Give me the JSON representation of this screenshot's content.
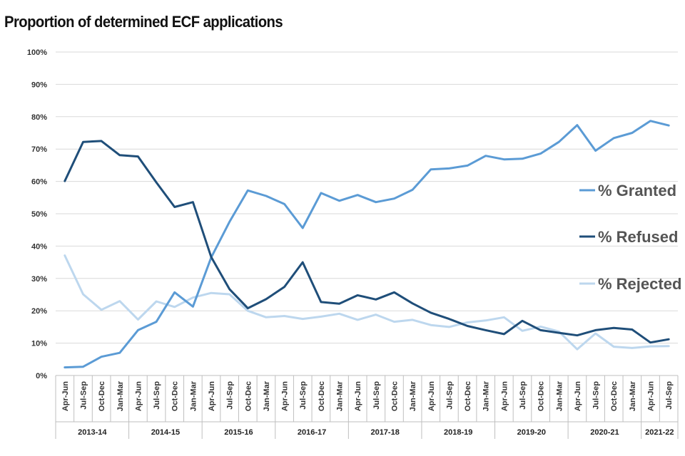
{
  "chart_data": {
    "type": "line",
    "title": "Proportion of determined ECF applications",
    "xlabel": "",
    "ylabel": "",
    "ylim": [
      0,
      100
    ],
    "y_ticks": [
      "0%",
      "10%",
      "20%",
      "30%",
      "40%",
      "50%",
      "60%",
      "70%",
      "80%",
      "90%",
      "100%"
    ],
    "y_tick_values": [
      0,
      10,
      20,
      30,
      40,
      50,
      60,
      70,
      80,
      90,
      100
    ],
    "categories": [
      "Apr-Jun",
      "Jul-Sep",
      "Oct-Dec",
      "Jan-Mar",
      "Apr-Jun",
      "Jul-Sep",
      "Oct-Dec",
      "Jan-Mar",
      "Apr-Jun",
      "Jul-Sep",
      "Oct-Dec",
      "Jan-Mar",
      "Apr-Jun",
      "Jul-Sep",
      "Oct-Dec",
      "Jan-Mar",
      "Apr-Jun",
      "Jul-Sep",
      "Oct-Dec",
      "Jan-Mar",
      "Apr-Jun",
      "Jul-Sep",
      "Oct-Dec",
      "Jan-Mar",
      "Apr-Jun",
      "Jul-Sep",
      "Oct-Dec",
      "Jan-Mar",
      "Apr-Jun",
      "Jul-Sep",
      "Oct-Dec",
      "Jan-Mar",
      "Apr-Jun",
      "Jul-Sep"
    ],
    "year_groups": [
      {
        "label": "2013-14",
        "count": 4
      },
      {
        "label": "2014-15",
        "count": 4
      },
      {
        "label": "2015-16",
        "count": 4
      },
      {
        "label": "2016-17",
        "count": 4
      },
      {
        "label": "2017-18",
        "count": 4
      },
      {
        "label": "2018-19",
        "count": 4
      },
      {
        "label": "2019-20",
        "count": 4
      },
      {
        "label": "2020-21",
        "count": 4
      },
      {
        "label": "2021-22",
        "count": 2
      }
    ],
    "series": [
      {
        "name": "% Granted",
        "color": "#5b9bd5",
        "values": [
          2.5,
          2.7,
          5.8,
          7,
          14,
          16.6,
          25.7,
          21.3,
          36.5,
          47.5,
          57.2,
          55.5,
          53,
          45.6,
          56.4,
          54,
          55.8,
          53.6,
          54.7,
          57.4,
          63.7,
          64,
          64.9,
          67.9,
          66.8,
          67,
          68.6,
          72.2,
          77.4,
          69.5,
          73.4,
          75,
          78.7,
          77.3
        ]
      },
      {
        "name": "% Refused",
        "color": "#1f4e79",
        "values": [
          60.1,
          72.2,
          72.5,
          68.1,
          67.7,
          59.7,
          52.1,
          53.6,
          36.6,
          26.7,
          20.8,
          23.6,
          27.4,
          35,
          22.7,
          22.2,
          24.8,
          23.5,
          25.7,
          22.3,
          19.4,
          17.5,
          15.3,
          14,
          12.8,
          16.9,
          14,
          13.2,
          12.4,
          14,
          14.7,
          14.2,
          10.2,
          11.2
        ]
      },
      {
        "name": "% Rejected",
        "color": "#bdd7ee",
        "values": [
          37.1,
          25.1,
          20.3,
          23,
          17.3,
          22.9,
          21.2,
          24.1,
          25.5,
          25.1,
          20,
          18,
          18.4,
          17.5,
          18.2,
          19.1,
          17.2,
          18.8,
          16.6,
          17.2,
          15.6,
          15,
          16.4,
          17,
          18,
          13.8,
          15.1,
          13.6,
          8.1,
          13,
          8.9,
          8.5,
          9,
          9.1
        ]
      }
    ],
    "legend": "right"
  }
}
